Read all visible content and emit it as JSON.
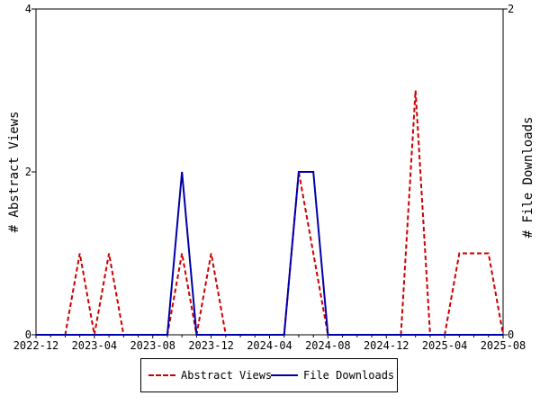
{
  "chart_data": {
    "type": "line",
    "x_tick_labels": [
      "2022-12",
      "2023-04",
      "2023-08",
      "2023-12",
      "2024-04",
      "2024-08",
      "2024-12",
      "2025-04",
      "2025-08"
    ],
    "x": [
      "2022-12",
      "2023-01",
      "2023-02",
      "2023-03",
      "2023-04",
      "2023-05",
      "2023-06",
      "2023-07",
      "2023-08",
      "2023-09",
      "2023-10",
      "2023-11",
      "2023-12",
      "2024-01",
      "2024-02",
      "2024-03",
      "2024-04",
      "2024-05",
      "2024-06",
      "2024-07",
      "2024-08",
      "2024-09",
      "2024-10",
      "2024-11",
      "2024-12",
      "2025-01",
      "2025-02",
      "2025-03",
      "2025-04",
      "2025-05",
      "2025-06",
      "2025-07",
      "2025-08"
    ],
    "series": [
      {
        "name": "Abstract Views",
        "axis": "left",
        "color": "#cc0000",
        "style": "dashed",
        "values": [
          0,
          0,
          0,
          1,
          0,
          1,
          0,
          0,
          0,
          0,
          1,
          0,
          1,
          0,
          0,
          0,
          0,
          0,
          2,
          1,
          0,
          0,
          0,
          0,
          0,
          0,
          3,
          0,
          0,
          1,
          1,
          1,
          0
        ]
      },
      {
        "name": "File Downloads",
        "axis": "right",
        "color": "#0000aa",
        "style": "solid",
        "values": [
          0,
          0,
          0,
          0,
          0,
          0,
          0,
          0,
          0,
          0,
          1,
          0,
          0,
          0,
          0,
          0,
          0,
          0,
          1,
          1,
          0,
          0,
          0,
          0,
          0,
          0,
          0,
          0,
          0,
          0,
          0,
          0,
          0
        ]
      }
    ],
    "ylabel_left": "# Abstract Views",
    "ylabel_right": "# File Downloads",
    "ylim_left": [
      0,
      4
    ],
    "ylim_right": [
      0,
      2
    ],
    "yticks_left": [
      "0",
      "2",
      "4"
    ],
    "yticks_right": [
      "0",
      "2"
    ],
    "legend_placement": "bottom",
    "grid": false
  },
  "legend": {
    "views_label": "Abstract Views",
    "downloads_label": "File Downloads"
  }
}
